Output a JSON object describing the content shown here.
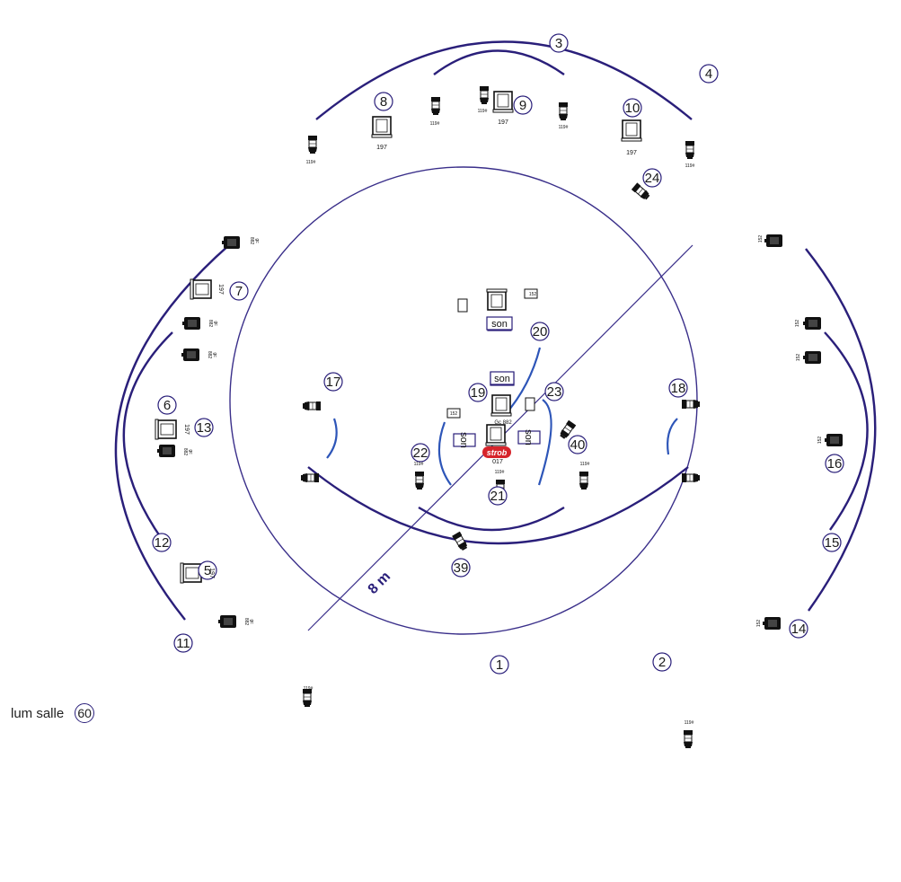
{
  "colors": {
    "circuit_arc": "#2a1f7a",
    "circle_stroke": "#3a2f8a",
    "cable_blue": "#2d55b8",
    "strob_red": "#d6242b",
    "ink": "#111111"
  },
  "scale_label": "8 m",
  "strob_label": "strob",
  "channels": {
    "c1": "1",
    "c2": "2",
    "c3": "3",
    "c4": "4",
    "c5": "5",
    "c6": "6",
    "c7": "7",
    "c8": "8",
    "c9": "9",
    "c10": "10",
    "c11": "11",
    "c12": "12",
    "c13": "13",
    "c14": "14",
    "c15": "15",
    "c16": "16",
    "c17": "17",
    "c18": "18",
    "c19": "19",
    "c20": "20",
    "c21": "21",
    "c22": "22",
    "c23": "23",
    "c24": "24",
    "c39": "39",
    "c40": "40",
    "c60": "60"
  },
  "house_lights": {
    "label": "lum salle",
    "channel": "60"
  },
  "gel_codes": {
    "g197": "197",
    "g119": "119#",
    "g152": "152",
    "g882": "882",
    "gc": "gc",
    "gc882": "Gc 882",
    "g017": "017"
  },
  "sound_label": "son"
}
